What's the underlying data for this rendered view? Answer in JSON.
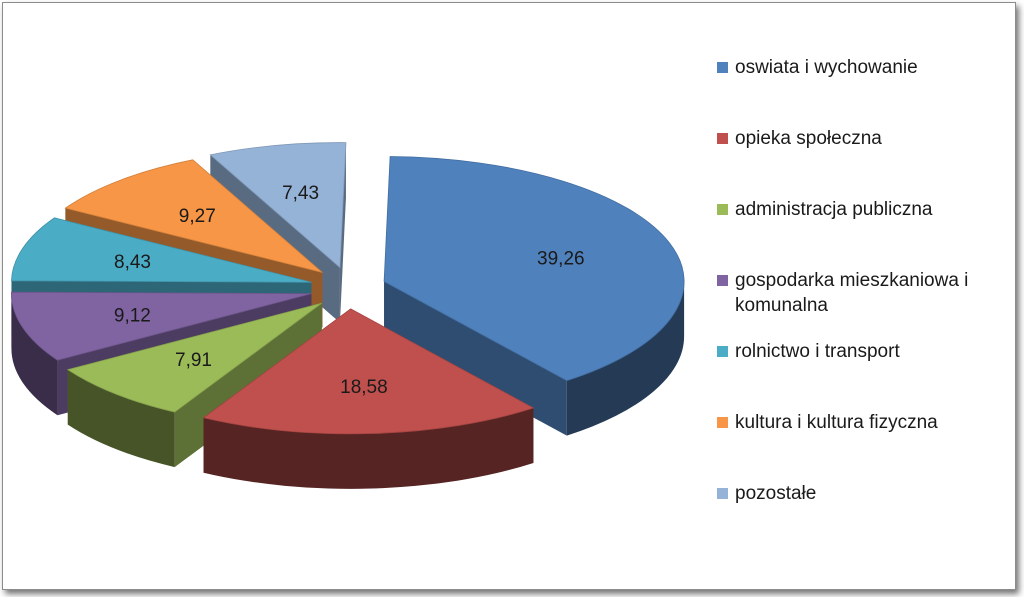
{
  "chart_data": {
    "type": "pie",
    "exploded": true,
    "three_d": true,
    "legend_position": "right",
    "categories": [
      "oswiata i wychowanie",
      "opieka społeczna",
      "administracja publiczna",
      "gospodarka mieszkaniowa i komunalna",
      "rolnictwo i transport",
      "kultura i kultura fizyczna",
      "pozostałe"
    ],
    "values": [
      39.26,
      18.58,
      7.91,
      9.12,
      8.43,
      9.27,
      7.43
    ],
    "data_labels": [
      "39,26",
      "18,58",
      "7,91",
      "9,12",
      "8,43",
      "9,27",
      "7,43"
    ],
    "colors": [
      "#4f81bd",
      "#c0504d",
      "#9bbb59",
      "#8064a2",
      "#4bacc6",
      "#f79646",
      "#95b3d7"
    ]
  }
}
